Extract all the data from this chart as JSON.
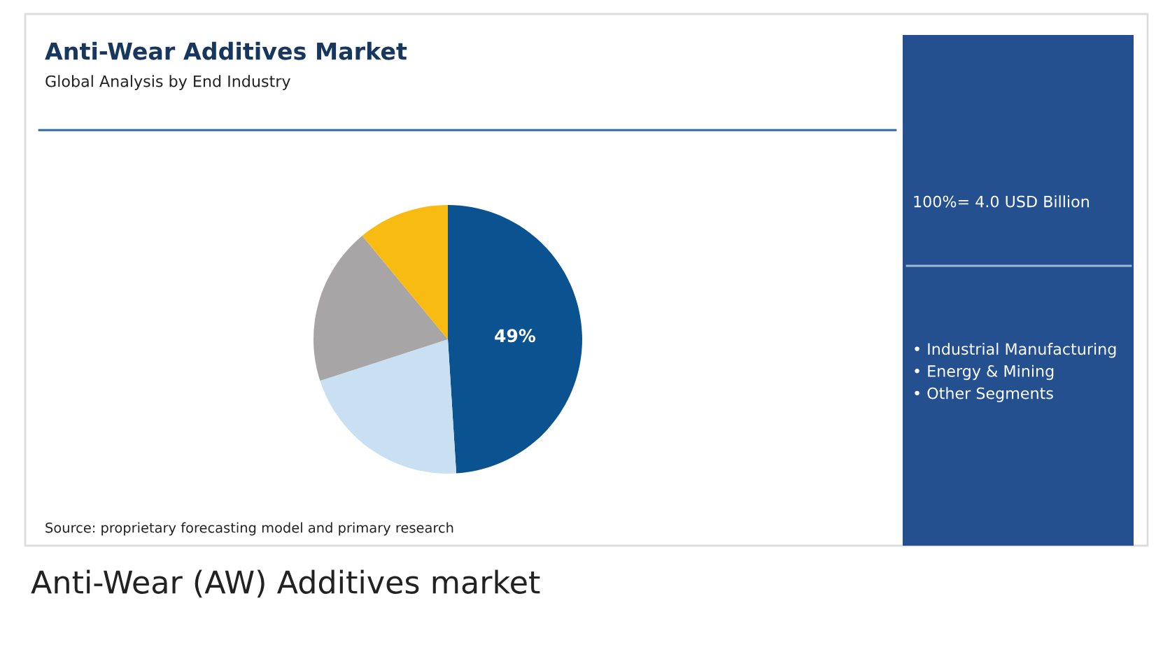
{
  "chart_data": {
    "type": "pie",
    "title": "Anti-Wear Additives Market",
    "subtitle": "Global Analysis by End Industry",
    "categories": [
      null,
      null,
      null,
      null
    ],
    "values": [
      49,
      21,
      19,
      11
    ],
    "colors": [
      "#0b5390",
      "#c9e0f2",
      "#a7a5a6",
      "#f8bb12"
    ],
    "value_labels": [
      "49%",
      null,
      null,
      null
    ],
    "annotations": [
      "100%= 4.0 USD Billion",
      "Source: proprietary forecasting model and primary research",
      "Anti-Wear (AW) Additives market",
      "• Industrial Manufacturing",
      "• Energy & Mining",
      "• Other Segments"
    ]
  }
}
